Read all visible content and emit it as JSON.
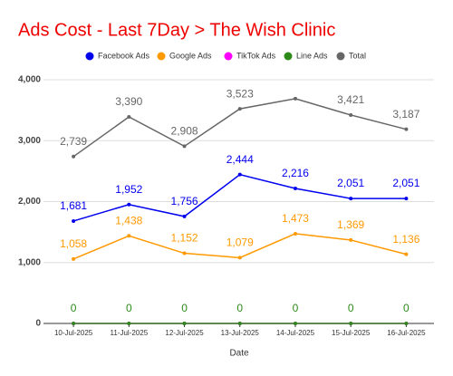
{
  "chart_data": {
    "type": "line",
    "title": "Ads Cost - Last 7Day > The Wish Clinic",
    "x_label": "Date",
    "categories": [
      "10-Jul-2025",
      "11-Jul-2025",
      "12-Jul-2025",
      "13-Jul-2025",
      "14-Jul-2025",
      "15-Jul-2025",
      "16-Jul-2025"
    ],
    "series": [
      {
        "name": "Facebook Ads",
        "color": "#0000ee",
        "values": [
          1681,
          1952,
          1756,
          2444,
          2216,
          2051,
          2051
        ],
        "value_labels": [
          "1,681",
          "1,952",
          "1,756",
          "2,444",
          "2,216",
          "2,051",
          "2,051"
        ]
      },
      {
        "name": "Google Ads",
        "color": "#ff9900",
        "values": [
          1058,
          1438,
          1152,
          1079,
          1473,
          1369,
          1136
        ],
        "value_labels": [
          "1,058",
          "1,438",
          "1,152",
          "1,079",
          "1,473",
          "1,369",
          "1,136"
        ]
      },
      {
        "name": "TikTok Ads",
        "color": "#ff00ff",
        "values": [
          0,
          0,
          0,
          0,
          0,
          0,
          0
        ],
        "labels": false
      },
      {
        "name": "Line Ads",
        "color": "#2d8a1a",
        "values": [
          0,
          0,
          0,
          0,
          0,
          0,
          0
        ],
        "labels": true
      },
      {
        "name": "Total",
        "color": "#666666",
        "values": [
          2739,
          3390,
          2908,
          3523,
          3689,
          3421,
          3187
        ],
        "value_labels": [
          "2,739",
          "3,390",
          "2,908",
          "3,523",
          null,
          "3,421",
          "3,187"
        ]
      }
    ],
    "ylim": [
      0,
      4000
    ],
    "yticks": [
      0,
      {
        "value": 1000,
        "label": "1,000"
      },
      {
        "value": 2000,
        "label": "2,000"
      },
      {
        "value": 3000,
        "label": "3,000"
      },
      {
        "value": 4000,
        "label": "4,000"
      }
    ],
    "grid": true
  }
}
